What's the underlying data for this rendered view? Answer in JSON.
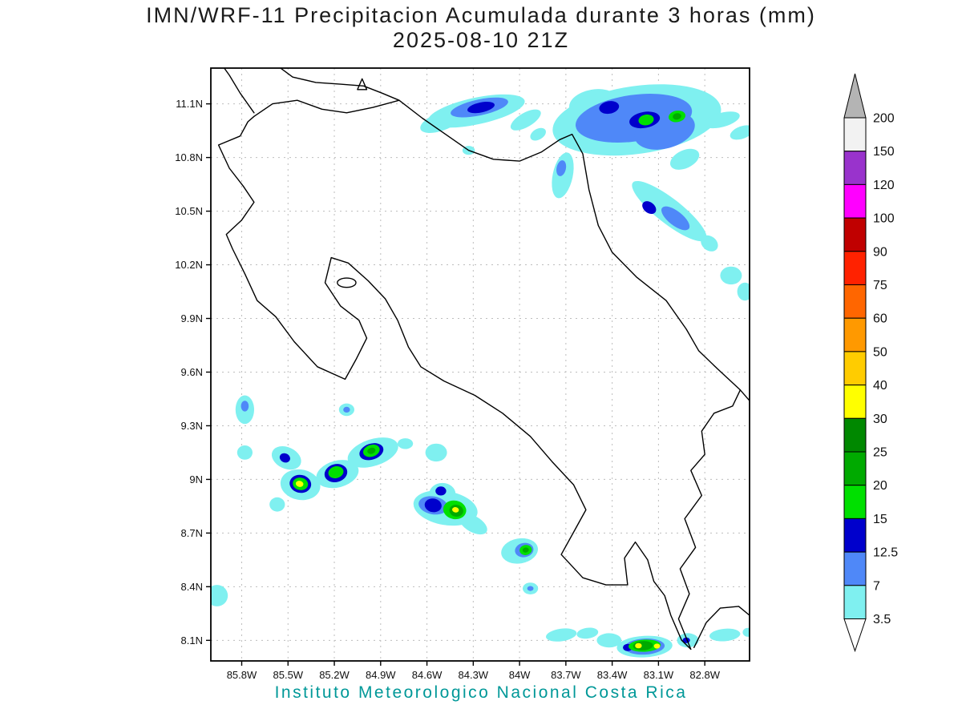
{
  "page": {
    "background": "#ffffff"
  },
  "title": {
    "line1": "IMN/WRF-11 Precipitacion Acumulada durante 3 horas (mm)",
    "line2": "2025-08-10 21Z"
  },
  "footer": {
    "caption": "Instituto Meteorologico Nacional Costa Rica",
    "color": "#009898"
  },
  "chart_data": {
    "type": "heatmap",
    "title": "IMN/WRF-11 Precipitacion Acumulada durante 3 horas (mm)",
    "subtitle": "2025-08-10 21Z",
    "units": "mm",
    "region": "Costa Rica",
    "lon_range_w": [
      86.0,
      82.51
    ],
    "lat_range_n": [
      7.985,
      11.3
    ],
    "grid": "dashed",
    "x_ticks": [
      "85.8W",
      "85.5W",
      "85.2W",
      "84.9W",
      "84.6W",
      "84.3W",
      "84W",
      "83.7W",
      "83.4W",
      "83.1W",
      "82.8W"
    ],
    "x_tick_values_w": [
      85.8,
      85.5,
      85.2,
      84.9,
      84.6,
      84.3,
      84.0,
      83.7,
      83.4,
      83.1,
      82.8
    ],
    "y_ticks": [
      "11.1N",
      "10.8N",
      "10.5N",
      "10.2N",
      "9.9N",
      "9.6N",
      "9.3N",
      "9N",
      "8.7N",
      "8.4N",
      "8.1N"
    ],
    "y_tick_values_n": [
      11.1,
      10.8,
      10.5,
      10.2,
      9.9,
      9.6,
      9.3,
      9.0,
      8.7,
      8.4,
      8.1
    ],
    "colorbar": {
      "labels_top_to_bottom": [
        "200",
        "150",
        "120",
        "100",
        "90",
        "75",
        "60",
        "50",
        "40",
        "30",
        "25",
        "20",
        "15",
        "12.5",
        "7",
        "3.5"
      ],
      "levels_mm": [
        3.5,
        7,
        12.5,
        15,
        20,
        25,
        30,
        40,
        50,
        60,
        75,
        90,
        100,
        120,
        150,
        200
      ],
      "segment_colors_top_to_bottom": [
        "#f2f2f2",
        "#9933cc",
        "#ff00ff",
        "#c00000",
        "#ff2200",
        "#ff6600",
        "#ff9900",
        "#ffcc00",
        "#ffff00",
        "#008800",
        "#00aa00",
        "#00e000",
        "#0000cc",
        "#4f88f8",
        "#7ff0f0"
      ],
      "over_arrow_color": "#b4b4b4",
      "under_arrow_color": "#ffffff",
      "level_colors": {
        "3.5": "#7ff0f0",
        "7": "#4f88f8",
        "12.5": "#0000cc",
        "15": "#00e000",
        "20": "#00aa00",
        "25": "#008800",
        "30": "#ffff00"
      }
    },
    "cells_format": "[lon_w, lat_n, rx_deg, ry_deg, rotation_deg, level_mm]",
    "precip_cells": [
      [
        84.51,
        11.0,
        0.14,
        0.05,
        -20,
        3.5
      ],
      [
        84.28,
        11.06,
        0.32,
        0.075,
        -12,
        3.5
      ],
      [
        84.26,
        11.08,
        0.19,
        0.045,
        -12,
        7
      ],
      [
        84.25,
        11.08,
        0.09,
        0.028,
        -12,
        12.5
      ],
      [
        83.96,
        11.01,
        0.11,
        0.04,
        -30,
        3.5
      ],
      [
        83.88,
        10.93,
        0.055,
        0.03,
        -30,
        3.5
      ],
      [
        84.33,
        10.84,
        0.04,
        0.025,
        0,
        3.5
      ],
      [
        83.72,
        10.7,
        0.065,
        0.13,
        12,
        3.5
      ],
      [
        83.73,
        10.74,
        0.03,
        0.045,
        12,
        7
      ],
      [
        83.52,
        11.1,
        0.16,
        0.08,
        -10,
        3.5
      ],
      [
        83.24,
        11.01,
        0.55,
        0.19,
        -8,
        3.5
      ],
      [
        83.26,
        11.02,
        0.38,
        0.13,
        -8,
        7
      ],
      [
        83.06,
        10.95,
        0.2,
        0.1,
        -15,
        7
      ],
      [
        83.42,
        11.08,
        0.065,
        0.035,
        -10,
        12.5
      ],
      [
        83.19,
        11.01,
        0.1,
        0.045,
        -10,
        12.5
      ],
      [
        83.18,
        11.01,
        0.05,
        0.03,
        -10,
        15
      ],
      [
        82.98,
        11.03,
        0.055,
        0.032,
        -10,
        15
      ],
      [
        82.98,
        11.03,
        0.028,
        0.018,
        -10,
        20
      ],
      [
        82.69,
        11.01,
        0.12,
        0.04,
        -15,
        3.5
      ],
      [
        82.56,
        10.94,
        0.08,
        0.035,
        -20,
        3.5
      ],
      [
        82.93,
        10.79,
        0.1,
        0.05,
        -25,
        3.5
      ],
      [
        83.03,
        10.5,
        0.3,
        0.07,
        38,
        3.5
      ],
      [
        83.16,
        10.52,
        0.05,
        0.03,
        38,
        12.5
      ],
      [
        82.99,
        10.46,
        0.11,
        0.04,
        38,
        7
      ],
      [
        82.77,
        10.32,
        0.06,
        0.04,
        38,
        3.5
      ],
      [
        82.63,
        10.14,
        0.07,
        0.05,
        0,
        3.5
      ],
      [
        82.54,
        10.05,
        0.05,
        0.05,
        0,
        3.5
      ],
      [
        85.78,
        9.39,
        0.06,
        0.08,
        0,
        3.5
      ],
      [
        85.78,
        9.41,
        0.025,
        0.03,
        0,
        7
      ],
      [
        85.78,
        9.15,
        0.05,
        0.04,
        0,
        3.5
      ],
      [
        85.51,
        9.12,
        0.1,
        0.06,
        25,
        3.5
      ],
      [
        85.52,
        9.12,
        0.035,
        0.025,
        25,
        12.5
      ],
      [
        85.42,
        8.97,
        0.13,
        0.085,
        10,
        3.5
      ],
      [
        85.42,
        8.975,
        0.07,
        0.05,
        10,
        12.5
      ],
      [
        85.42,
        8.975,
        0.05,
        0.035,
        10,
        15
      ],
      [
        85.425,
        8.975,
        0.025,
        0.017,
        10,
        30
      ],
      [
        85.57,
        8.86,
        0.05,
        0.04,
        0,
        3.5
      ],
      [
        85.18,
        9.03,
        0.14,
        0.075,
        -15,
        3.5
      ],
      [
        85.19,
        9.035,
        0.075,
        0.05,
        -15,
        12.5
      ],
      [
        85.19,
        9.04,
        0.05,
        0.033,
        -15,
        15
      ],
      [
        84.95,
        9.15,
        0.17,
        0.075,
        -18,
        3.5
      ],
      [
        84.96,
        9.155,
        0.08,
        0.045,
        -18,
        12.5
      ],
      [
        84.96,
        9.16,
        0.055,
        0.033,
        -18,
        15
      ],
      [
        84.96,
        9.16,
        0.027,
        0.017,
        -18,
        20
      ],
      [
        84.74,
        9.2,
        0.05,
        0.03,
        0,
        3.5
      ],
      [
        85.12,
        9.39,
        0.05,
        0.035,
        0,
        3.5
      ],
      [
        85.12,
        9.39,
        0.022,
        0.016,
        0,
        7
      ],
      [
        84.54,
        9.15,
        0.07,
        0.05,
        0,
        3.5
      ],
      [
        84.5,
        8.92,
        0.085,
        0.06,
        0,
        3.5
      ],
      [
        84.51,
        8.935,
        0.035,
        0.025,
        0,
        12.5
      ],
      [
        84.48,
        8.84,
        0.21,
        0.095,
        10,
        3.5
      ],
      [
        84.56,
        8.855,
        0.095,
        0.05,
        10,
        7
      ],
      [
        84.56,
        8.855,
        0.055,
        0.038,
        10,
        12.5
      ],
      [
        84.42,
        8.83,
        0.075,
        0.052,
        10,
        15
      ],
      [
        84.41,
        8.825,
        0.045,
        0.033,
        10,
        20
      ],
      [
        84.415,
        8.83,
        0.022,
        0.015,
        10,
        30
      ],
      [
        84.3,
        8.75,
        0.1,
        0.045,
        30,
        3.5
      ],
      [
        84.0,
        8.6,
        0.12,
        0.07,
        -10,
        3.5
      ],
      [
        83.97,
        8.605,
        0.06,
        0.04,
        -10,
        7
      ],
      [
        83.96,
        8.605,
        0.04,
        0.028,
        -10,
        15
      ],
      [
        83.96,
        8.605,
        0.02,
        0.014,
        -10,
        20
      ],
      [
        83.93,
        8.39,
        0.05,
        0.033,
        0,
        3.5
      ],
      [
        83.93,
        8.39,
        0.02,
        0.014,
        0,
        7
      ],
      [
        85.96,
        8.35,
        0.07,
        0.06,
        0,
        3.5
      ],
      [
        83.73,
        8.13,
        0.1,
        0.035,
        -8,
        3.5
      ],
      [
        83.56,
        8.14,
        0.07,
        0.03,
        -8,
        3.5
      ],
      [
        83.42,
        8.1,
        0.08,
        0.04,
        0,
        3.5
      ],
      [
        83.19,
        8.065,
        0.18,
        0.06,
        -3,
        3.5
      ],
      [
        83.19,
        8.065,
        0.13,
        0.045,
        -3,
        7
      ],
      [
        83.19,
        8.07,
        0.105,
        0.034,
        -3,
        15
      ],
      [
        83.2,
        8.07,
        0.065,
        0.026,
        -3,
        20
      ],
      [
        83.23,
        8.07,
        0.022,
        0.015,
        0,
        30
      ],
      [
        83.11,
        8.068,
        0.02,
        0.014,
        0,
        30
      ],
      [
        83.3,
        8.06,
        0.03,
        0.02,
        0,
        12.5
      ],
      [
        82.91,
        8.1,
        0.07,
        0.04,
        0,
        3.5
      ],
      [
        82.92,
        8.1,
        0.024,
        0.016,
        0,
        12.5
      ],
      [
        82.67,
        8.13,
        0.1,
        0.035,
        -5,
        3.5
      ],
      [
        82.52,
        8.145,
        0.035,
        0.025,
        0,
        3.5
      ]
    ]
  },
  "map": {
    "costa_rica_outline": [
      [
        85.72,
        11.03
      ],
      [
        85.6,
        11.1
      ],
      [
        85.44,
        11.12
      ],
      [
        85.28,
        11.07
      ],
      [
        85.12,
        11.05
      ],
      [
        84.95,
        11.08
      ],
      [
        84.78,
        11.12
      ],
      [
        84.63,
        11.02
      ],
      [
        84.48,
        10.93
      ],
      [
        84.33,
        10.84
      ],
      [
        84.17,
        10.79
      ],
      [
        84.0,
        10.78
      ],
      [
        83.86,
        10.83
      ],
      [
        83.74,
        10.9
      ],
      [
        83.66,
        10.93
      ],
      [
        83.59,
        10.82
      ],
      [
        83.55,
        10.62
      ],
      [
        83.49,
        10.42
      ],
      [
        83.4,
        10.27
      ],
      [
        83.24,
        10.13
      ],
      [
        83.05,
        10.0
      ],
      [
        82.92,
        9.84
      ],
      [
        82.84,
        9.72
      ],
      [
        82.72,
        9.62
      ],
      [
        82.57,
        9.5
      ],
      [
        82.62,
        9.41
      ],
      [
        82.74,
        9.37
      ],
      [
        82.82,
        9.27
      ],
      [
        82.8,
        9.14
      ],
      [
        82.89,
        9.05
      ],
      [
        82.82,
        8.91
      ],
      [
        82.93,
        8.78
      ],
      [
        82.86,
        8.62
      ],
      [
        82.96,
        8.5
      ],
      [
        82.9,
        8.36
      ],
      [
        82.97,
        8.22
      ],
      [
        82.89,
        8.05
      ],
      [
        82.95,
        8.1
      ],
      [
        83.02,
        8.24
      ],
      [
        83.06,
        8.35
      ],
      [
        83.13,
        8.43
      ],
      [
        83.17,
        8.55
      ],
      [
        83.25,
        8.65
      ],
      [
        83.32,
        8.56
      ],
      [
        83.3,
        8.41
      ],
      [
        83.44,
        8.41
      ],
      [
        83.59,
        8.45
      ],
      [
        83.73,
        8.58
      ],
      [
        83.64,
        8.72
      ],
      [
        83.57,
        8.83
      ],
      [
        83.65,
        8.97
      ],
      [
        83.79,
        9.1
      ],
      [
        83.93,
        9.24
      ],
      [
        84.11,
        9.37
      ],
      [
        84.29,
        9.47
      ],
      [
        84.49,
        9.55
      ],
      [
        84.64,
        9.63
      ],
      [
        84.72,
        9.74
      ],
      [
        84.79,
        9.89
      ],
      [
        84.87,
        10.01
      ],
      [
        84.98,
        10.11
      ],
      [
        85.11,
        10.21
      ],
      [
        85.22,
        10.24
      ],
      [
        85.26,
        10.1
      ],
      [
        85.16,
        9.97
      ],
      [
        85.04,
        9.89
      ],
      [
        84.99,
        9.79
      ],
      [
        85.06,
        9.67
      ],
      [
        85.13,
        9.56
      ],
      [
        85.31,
        9.63
      ],
      [
        85.46,
        9.77
      ],
      [
        85.58,
        9.91
      ],
      [
        85.7,
        10.0
      ],
      [
        85.78,
        10.15
      ],
      [
        85.86,
        10.29
      ],
      [
        85.9,
        10.37
      ],
      [
        85.8,
        10.45
      ],
      [
        85.72,
        10.55
      ],
      [
        85.79,
        10.64
      ],
      [
        85.88,
        10.74
      ],
      [
        85.95,
        10.87
      ],
      [
        85.81,
        10.92
      ],
      [
        85.76,
        11.0
      ]
    ],
    "nicaragua_coast": [
      [
        85.72,
        11.05
      ],
      [
        85.81,
        11.16
      ],
      [
        85.88,
        11.26
      ],
      [
        85.93,
        11.32
      ]
    ],
    "lake_nicaragua_shore": [
      [
        85.58,
        11.32
      ],
      [
        85.47,
        11.25
      ],
      [
        85.32,
        11.22
      ],
      [
        85.16,
        11.21
      ],
      [
        85.01,
        11.2
      ],
      [
        84.89,
        11.16
      ],
      [
        84.78,
        11.12
      ]
    ],
    "lake_island": [
      [
        85.05,
        11.18
      ],
      [
        84.99,
        11.18
      ],
      [
        85.02,
        11.24
      ]
    ],
    "chira_island": {
      "lon": 85.12,
      "lat": 10.1,
      "rx_deg": 0.06,
      "ry_deg": 0.026
    },
    "panama_caribbean_coast": [
      [
        82.57,
        9.5
      ],
      [
        82.51,
        9.44
      ]
    ],
    "panama_pacific_coast": [
      [
        82.87,
        8.06
      ],
      [
        82.79,
        8.2
      ],
      [
        82.7,
        8.28
      ],
      [
        82.58,
        8.29
      ],
      [
        82.51,
        8.24
      ]
    ]
  }
}
